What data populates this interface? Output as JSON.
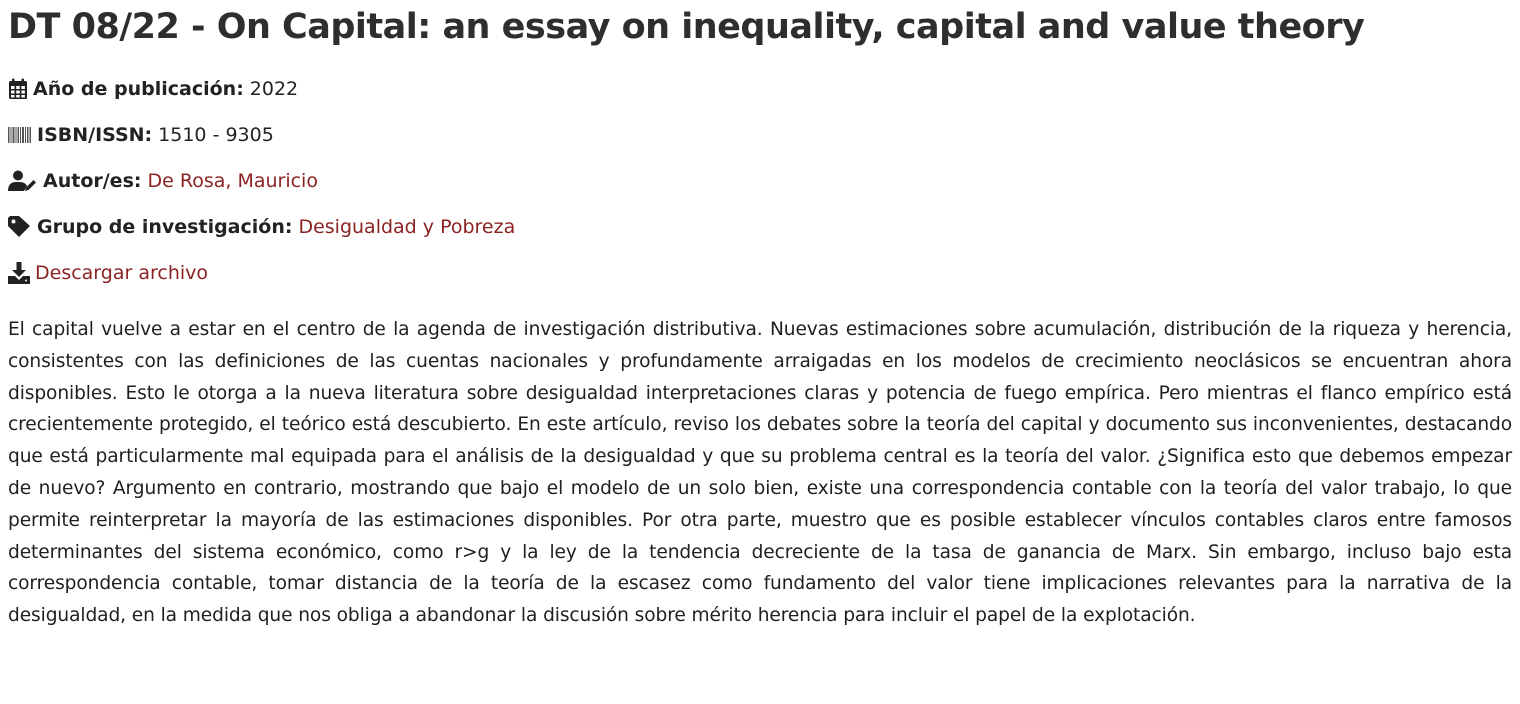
{
  "publication": {
    "title": "DT 08/22 - On Capital: an essay on inequality, capital and value theory",
    "year": {
      "icon": "calendar-icon",
      "label": "Año de publicación:",
      "value": "2022"
    },
    "isbn": {
      "icon": "barcode-icon",
      "label": "ISBN/ISSN:",
      "value": "1510 - 9305"
    },
    "authors": {
      "icon": "user-edit-icon",
      "label": "Autor/es:",
      "value": "De Rosa, Mauricio"
    },
    "research_group": {
      "icon": "tag-icon",
      "label": "Grupo de investigación:",
      "value": "Desigualdad y Pobreza"
    },
    "download": {
      "icon": "download-icon",
      "label": "Descargar archivo"
    },
    "abstract": "El capital vuelve a estar en el centro de la agenda de investigación distributiva. Nuevas estimaciones sobre acumulación, distribución de la riqueza y herencia, consistentes con las definiciones de las cuentas nacionales y profundamente arraigadas en los modelos de crecimiento neoclásicos se encuentran ahora disponibles. Esto le otorga a la nueva literatura sobre desigualdad interpretaciones claras y potencia de fuego empírica. Pero mientras el flanco empírico está crecientemente protegido, el teórico está descubierto. En este artículo, reviso los debates sobre la teoría del capital y documento sus inconvenientes, destacando que está particularmente mal equipada para el análisis de la desigualdad y que su problema central es la teoría del valor. ¿Significa esto que debemos empezar de nuevo? Argumento en contrario, mostrando que bajo el modelo de un solo bien, existe una correspondencia contable con la teoría del valor trabajo, lo que permite reinterpretar la mayoría de las estimaciones disponibles. Por otra parte, muestro que es posible establecer vínculos contables claros entre famosos determinantes del sistema económico, como r>g y la ley de la tendencia decreciente de la tasa de ganancia de Marx. Sin embargo, incluso bajo esta correspondencia contable, tomar distancia de la teoría de la escasez como fundamento del valor tiene implicaciones relevantes para la narrativa de la desigualdad, en la medida que nos obliga a abandonar la discusión sobre mérito herencia para incluir el papel de la explotación."
  },
  "colors": {
    "link": "#8b2323",
    "text": "#222222"
  }
}
